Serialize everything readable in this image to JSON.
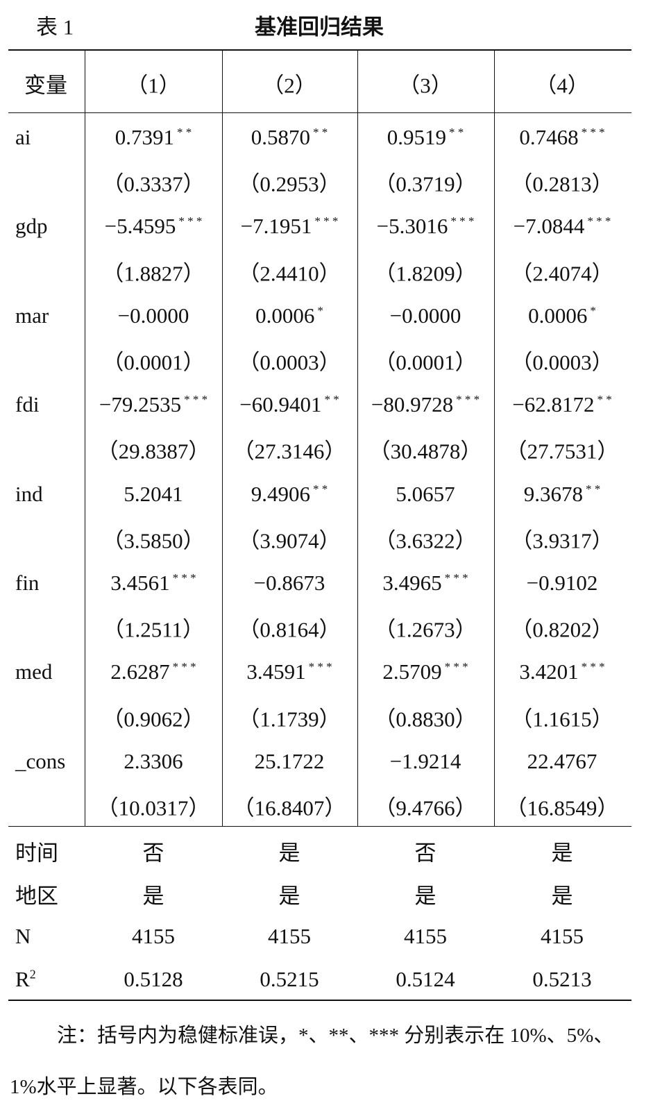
{
  "header": {
    "label": "表 1",
    "title": "基准回归结果"
  },
  "table": {
    "columns": [
      "变量",
      "（1）",
      "（2）",
      "（3）",
      "（4）"
    ],
    "rows": [
      {
        "label": "ai",
        "cells": [
          {
            "coef": "0.7391",
            "stars": "* *"
          },
          {
            "coef": "0.5870",
            "stars": "* *"
          },
          {
            "coef": "0.9519",
            "stars": "* *"
          },
          {
            "coef": "0.7468",
            "stars": "* * *"
          }
        ]
      },
      {
        "cells": [
          {
            "coef": "（0.3337）"
          },
          {
            "coef": "（0.2953）"
          },
          {
            "coef": "（0.3719）"
          },
          {
            "coef": "（0.2813）"
          }
        ]
      },
      {
        "label": "gdp",
        "cells": [
          {
            "coef": "−5.4595",
            "stars": "* * *"
          },
          {
            "coef": "−7.1951",
            "stars": "* * *"
          },
          {
            "coef": "−5.3016",
            "stars": "* * *"
          },
          {
            "coef": "−7.0844",
            "stars": "* * *"
          }
        ]
      },
      {
        "cells": [
          {
            "coef": "（1.8827）"
          },
          {
            "coef": "（2.4410）"
          },
          {
            "coef": "（1.8209）"
          },
          {
            "coef": "（2.4074）"
          }
        ]
      },
      {
        "label": "mar",
        "cells": [
          {
            "coef": "−0.0000"
          },
          {
            "coef": "0.0006",
            "stars": "*"
          },
          {
            "coef": "−0.0000"
          },
          {
            "coef": "0.0006",
            "stars": "*"
          }
        ]
      },
      {
        "cells": [
          {
            "coef": "（0.0001）"
          },
          {
            "coef": "（0.0003）"
          },
          {
            "coef": "（0.0001）"
          },
          {
            "coef": "（0.0003）"
          }
        ]
      },
      {
        "label": "fdi",
        "cells": [
          {
            "coef": "−79.2535",
            "stars": "* * *"
          },
          {
            "coef": "−60.9401",
            "stars": "* *"
          },
          {
            "coef": "−80.9728",
            "stars": "* * *"
          },
          {
            "coef": "−62.8172",
            "stars": "* *"
          }
        ]
      },
      {
        "cells": [
          {
            "coef": "（29.8387）"
          },
          {
            "coef": "（27.3146）"
          },
          {
            "coef": "（30.4878）"
          },
          {
            "coef": "（27.7531）"
          }
        ]
      },
      {
        "label": "ind",
        "cells": [
          {
            "coef": "5.2041"
          },
          {
            "coef": "9.4906",
            "stars": "* *"
          },
          {
            "coef": "5.0657"
          },
          {
            "coef": "9.3678",
            "stars": "* *"
          }
        ]
      },
      {
        "cells": [
          {
            "coef": "（3.5850）"
          },
          {
            "coef": "（3.9074）"
          },
          {
            "coef": "（3.6322）"
          },
          {
            "coef": "（3.9317）"
          }
        ]
      },
      {
        "label": "fin",
        "cells": [
          {
            "coef": "3.4561",
            "stars": "* * *"
          },
          {
            "coef": "−0.8673"
          },
          {
            "coef": "3.4965",
            "stars": "* * *"
          },
          {
            "coef": "−0.9102"
          }
        ]
      },
      {
        "cells": [
          {
            "coef": "（1.2511）"
          },
          {
            "coef": "（0.8164）"
          },
          {
            "coef": "（1.2673）"
          },
          {
            "coef": "（0.8202）"
          }
        ]
      },
      {
        "label": "med",
        "cells": [
          {
            "coef": "2.6287",
            "stars": "* * *"
          },
          {
            "coef": "3.4591",
            "stars": "* * *"
          },
          {
            "coef": "2.5709",
            "stars": "* * *"
          },
          {
            "coef": "3.4201",
            "stars": "* * *"
          }
        ]
      },
      {
        "cells": [
          {
            "coef": "（0.9062）"
          },
          {
            "coef": "（1.1739）"
          },
          {
            "coef": "（0.8830）"
          },
          {
            "coef": "（1.1615）"
          }
        ]
      },
      {
        "label": "_cons",
        "cells": [
          {
            "coef": "2.3306"
          },
          {
            "coef": "25.1722"
          },
          {
            "coef": "−1.9214"
          },
          {
            "coef": "22.4767"
          }
        ]
      },
      {
        "cells": [
          {
            "coef": "（10.0317）"
          },
          {
            "coef": "（16.8407）"
          },
          {
            "coef": "（9.4766）"
          },
          {
            "coef": "（16.8549）"
          }
        ]
      }
    ],
    "footer_rows": [
      {
        "label": "时间",
        "cells": [
          "否",
          "是",
          "否",
          "是"
        ]
      },
      {
        "label": "地区",
        "cells": [
          "是",
          "是",
          "是",
          "是"
        ]
      },
      {
        "label": "N",
        "cells": [
          "4155",
          "4155",
          "4155",
          "4155"
        ]
      },
      {
        "label": "R",
        "sup": "2",
        "cells": [
          "0.5128",
          "0.5215",
          "0.5124",
          "0.5213"
        ]
      }
    ]
  },
  "note": "注：括号内为稳健标准误，*、**、*** 分别表示在 10%、5%、1%水平上显著。以下各表同。"
}
